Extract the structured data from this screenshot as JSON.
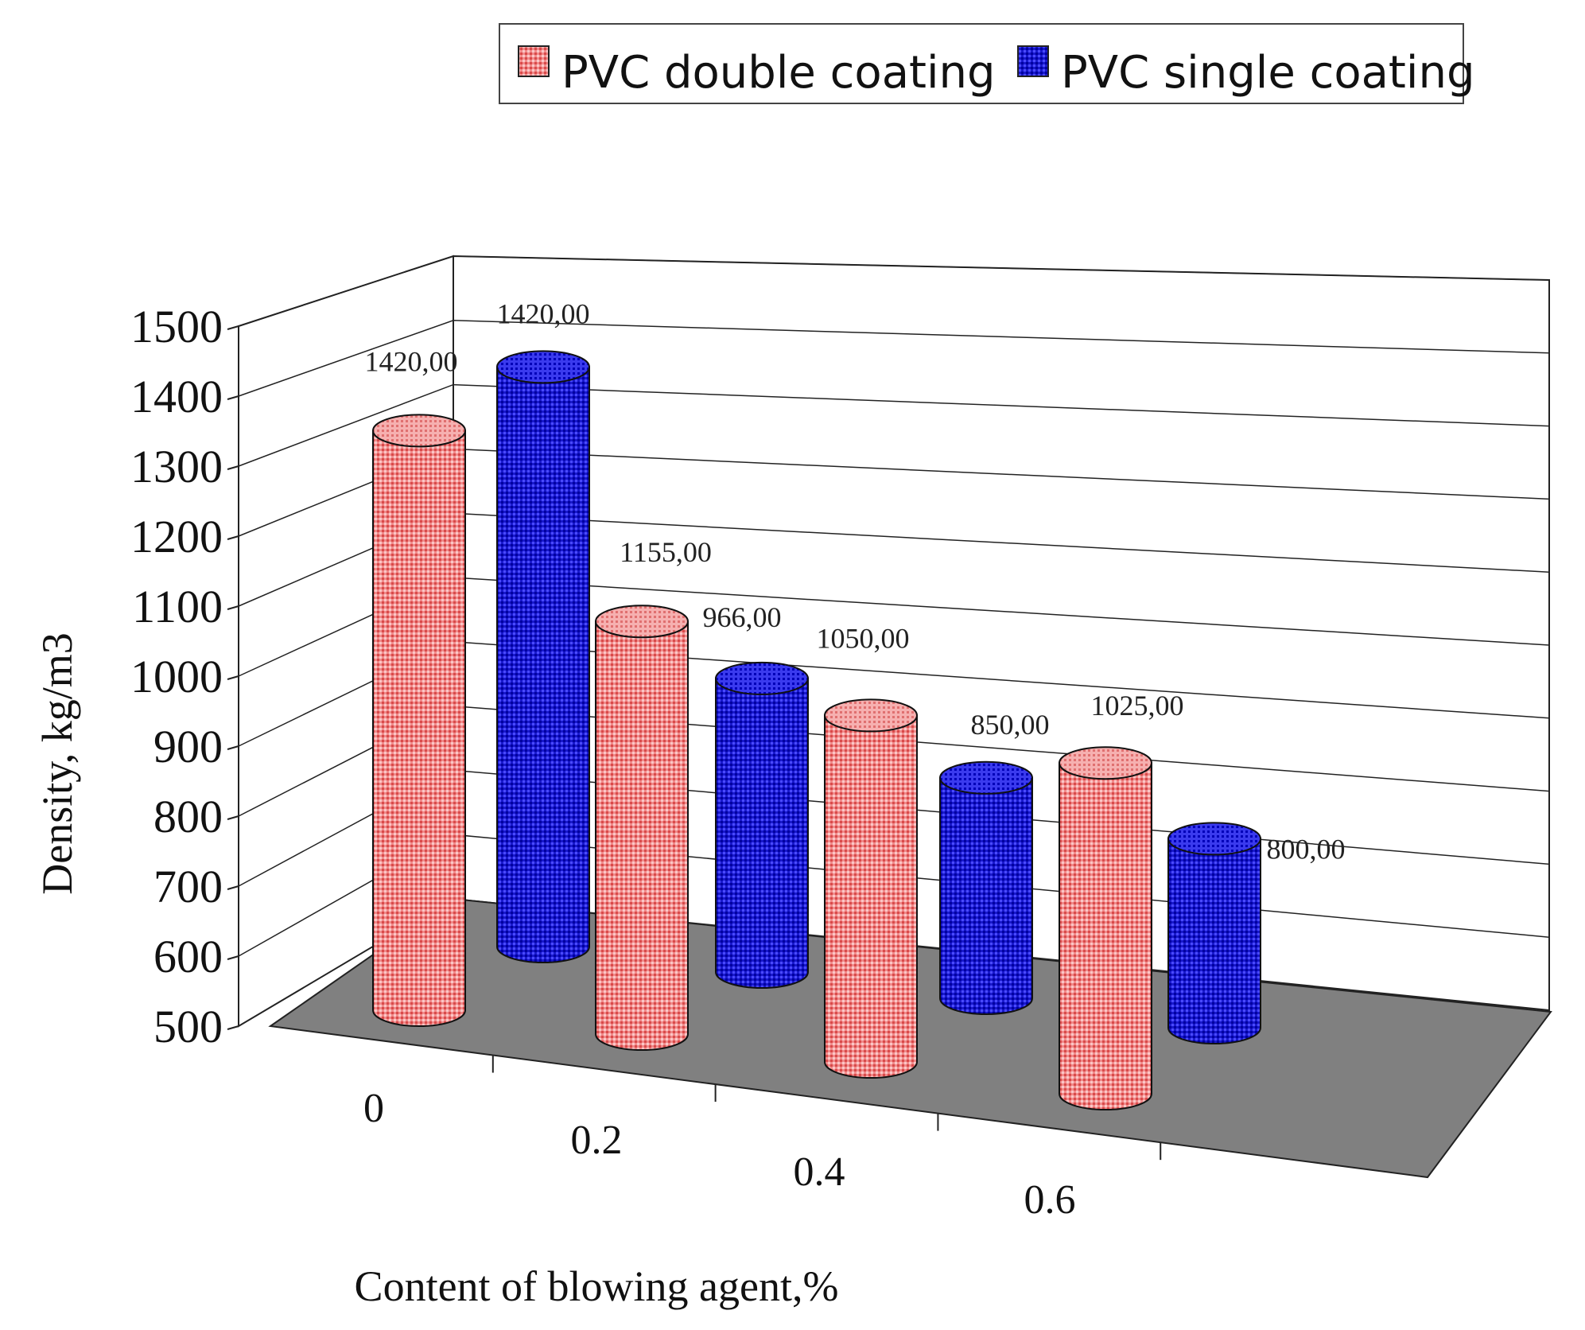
{
  "chart_data": {
    "type": "bar",
    "style": "3d-cylinder",
    "categories": [
      "0",
      "0.2",
      "0.4",
      "0.6"
    ],
    "series": [
      {
        "name": "PVC double coating",
        "values": [
          1420,
          1155,
          1050,
          1025
        ],
        "labels": [
          "1420,00",
          "1155,00",
          "1050,00",
          "1025,00"
        ],
        "color": "#e86a6a"
      },
      {
        "name": "PVC single coating",
        "values": [
          1420,
          966,
          850,
          800
        ],
        "labels": [
          "1420,00",
          "966,00",
          "850,00",
          "800,00"
        ],
        "color": "#1a1ad8"
      }
    ],
    "title": "",
    "xlabel": "Content of blowing agent,%",
    "ylabel": "Density, kg/m3",
    "ylim": [
      500,
      1500
    ],
    "yticks": [
      500,
      600,
      700,
      800,
      900,
      1000,
      1100,
      1200,
      1300,
      1400,
      1500
    ],
    "legend_position": "top-right",
    "floor_color": "#808080"
  }
}
